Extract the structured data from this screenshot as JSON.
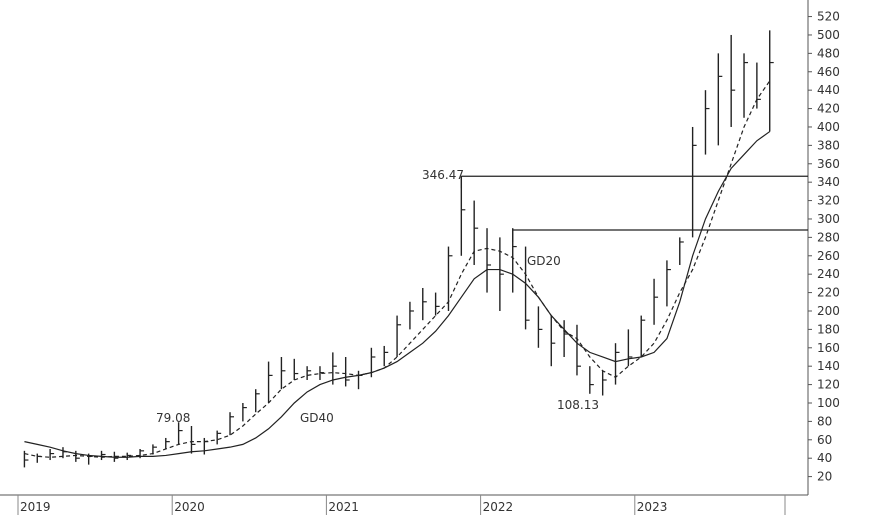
{
  "chart_data": {
    "type": "ohlc",
    "categories": [
      "2019",
      null,
      null,
      null,
      null,
      null,
      null,
      null,
      null,
      null,
      null,
      null,
      "2020",
      null,
      null,
      null,
      null,
      null,
      null,
      null,
      null,
      null,
      null,
      null,
      "2021",
      null,
      null,
      null,
      null,
      null,
      null,
      null,
      null,
      null,
      null,
      null,
      "2022",
      null,
      null,
      null,
      null,
      null,
      null,
      null,
      null,
      null,
      null,
      null,
      "2023",
      null,
      null,
      null,
      null,
      null,
      null,
      null,
      null,
      null,
      null
    ],
    "high": [
      48,
      45,
      50,
      52,
      48,
      45,
      48,
      47,
      46,
      50,
      55,
      62,
      79.08,
      75,
      62,
      70,
      90,
      100,
      115,
      145,
      150,
      148,
      140,
      140,
      155,
      150,
      135,
      160,
      162,
      195,
      210,
      225,
      220,
      270,
      346.47,
      320,
      290,
      280,
      290,
      270,
      205,
      195,
      190,
      185,
      140,
      135,
      165,
      180,
      195,
      235,
      255,
      280,
      400,
      440,
      480,
      500,
      480,
      470,
      505
    ],
    "low": [
      30,
      35,
      38,
      40,
      36,
      33,
      38,
      36,
      38,
      40,
      44,
      50,
      55,
      45,
      44,
      55,
      65,
      80,
      90,
      100,
      115,
      125,
      125,
      125,
      120,
      118,
      115,
      128,
      140,
      150,
      180,
      190,
      195,
      200,
      260,
      250,
      220,
      200,
      220,
      180,
      160,
      140,
      150,
      130,
      110,
      108.13,
      120,
      140,
      150,
      185,
      205,
      250,
      280,
      370,
      380,
      400,
      410,
      420,
      395
    ],
    "close": [
      38,
      42,
      45,
      47,
      40,
      42,
      44,
      40,
      43,
      48,
      52,
      58,
      70,
      55,
      58,
      67,
      85,
      95,
      110,
      130,
      135,
      132,
      135,
      133,
      140,
      125,
      130,
      150,
      155,
      185,
      200,
      210,
      205,
      260,
      310,
      290,
      250,
      240,
      270,
      190,
      180,
      165,
      175,
      140,
      120,
      125,
      155,
      150,
      190,
      215,
      245,
      275,
      380,
      420,
      455,
      440,
      470,
      430,
      470
    ],
    "color": "#222",
    "series": [
      {
        "name": "GD20",
        "style": "dashed",
        "color": "#222",
        "values": [
          45,
          42,
          41,
          42,
          43,
          42,
          41,
          42,
          42,
          43,
          45,
          50,
          55,
          58,
          58,
          60,
          65,
          75,
          88,
          100,
          115,
          125,
          130,
          132,
          133,
          132,
          130,
          133,
          138,
          150,
          165,
          180,
          195,
          210,
          240,
          265,
          268,
          265,
          258,
          240,
          215,
          195,
          178,
          170,
          150,
          135,
          128,
          140,
          150,
          165,
          190,
          220,
          245,
          280,
          320,
          360,
          400,
          430,
          450
        ]
      },
      {
        "name": "GD40",
        "style": "solid",
        "color": "#222",
        "values": [
          58,
          55,
          52,
          48,
          45,
          43,
          42,
          41,
          41,
          42,
          42,
          43,
          45,
          47,
          48,
          50,
          52,
          55,
          62,
          72,
          85,
          100,
          112,
          120,
          125,
          128,
          130,
          133,
          138,
          145,
          155,
          165,
          178,
          195,
          215,
          235,
          245,
          245,
          240,
          230,
          215,
          195,
          180,
          165,
          155,
          150,
          145,
          148,
          150,
          155,
          170,
          210,
          260,
          300,
          330,
          355,
          370,
          385,
          395
        ]
      }
    ],
    "levels": [
      346.47,
      288
    ],
    "annotations": [
      "346.47",
      "79.08",
      "108.13"
    ],
    "ylim": [
      0,
      538
    ],
    "yticks": [
      20,
      40,
      60,
      80,
      100,
      120,
      140,
      160,
      180,
      200,
      220,
      240,
      260,
      280,
      300,
      320,
      340,
      360,
      380,
      400,
      420,
      440,
      460,
      480,
      500,
      520
    ]
  }
}
